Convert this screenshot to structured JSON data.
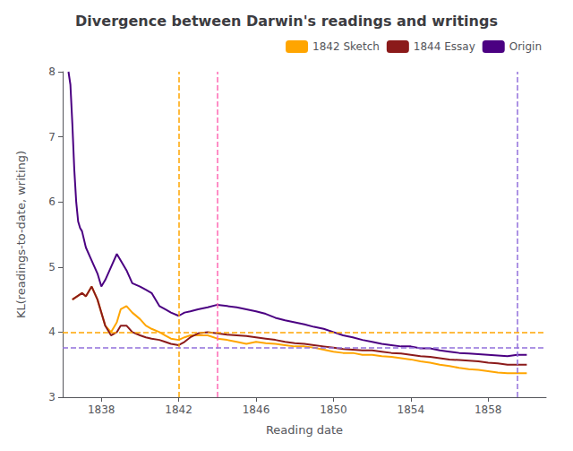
{
  "chart_data": {
    "type": "line",
    "title": "Divergence between Darwin's readings and writings",
    "xlabel": "Reading date",
    "ylabel": "KL(readings-to-date, writing)",
    "xlim": [
      1836.0,
      1861.0
    ],
    "ylim": [
      3.0,
      8.0
    ],
    "xticks": [
      1838,
      1842,
      1846,
      1850,
      1854,
      1858
    ],
    "yticks": [
      3,
      4,
      5,
      6,
      7,
      8
    ],
    "grid": false,
    "legend": "upper right",
    "series": [
      {
        "name": "1842 Sketch",
        "color": "#FFA500",
        "x": [
          1836.5,
          1837.0,
          1837.2,
          1837.5,
          1837.8,
          1838.0,
          1838.2,
          1838.5,
          1838.8,
          1839.0,
          1839.3,
          1839.6,
          1840.0,
          1840.3,
          1840.6,
          1841.0,
          1841.3,
          1841.6,
          1842.0,
          1842.3,
          1842.6,
          1843.0,
          1843.5,
          1844.0,
          1844.5,
          1845.0,
          1845.5,
          1846.0,
          1846.5,
          1847.0,
          1847.5,
          1848.0,
          1848.5,
          1849.0,
          1849.5,
          1850.0,
          1850.5,
          1851.0,
          1851.5,
          1852.0,
          1852.5,
          1853.0,
          1853.5,
          1854.0,
          1854.5,
          1855.0,
          1855.5,
          1856.0,
          1856.5,
          1857.0,
          1857.5,
          1858.0,
          1858.5,
          1859.0,
          1859.5,
          1860.0
        ],
        "values": [
          4.5,
          4.6,
          4.55,
          4.7,
          4.5,
          4.3,
          4.1,
          4.0,
          4.15,
          4.35,
          4.4,
          4.3,
          4.2,
          4.1,
          4.05,
          4.0,
          3.95,
          3.9,
          3.88,
          3.92,
          3.95,
          3.95,
          3.95,
          3.9,
          3.88,
          3.85,
          3.82,
          3.85,
          3.83,
          3.82,
          3.8,
          3.78,
          3.78,
          3.76,
          3.73,
          3.7,
          3.68,
          3.68,
          3.65,
          3.65,
          3.63,
          3.62,
          3.6,
          3.58,
          3.55,
          3.53,
          3.5,
          3.48,
          3.45,
          3.43,
          3.42,
          3.4,
          3.38,
          3.37,
          3.37,
          3.37
        ]
      },
      {
        "name": "1844 Essay",
        "color": "#8B1A1A",
        "x": [
          1836.5,
          1837.0,
          1837.2,
          1837.5,
          1837.8,
          1838.0,
          1838.2,
          1838.5,
          1838.8,
          1839.0,
          1839.3,
          1839.6,
          1840.0,
          1840.3,
          1840.6,
          1841.0,
          1841.3,
          1841.6,
          1842.0,
          1842.3,
          1842.6,
          1843.0,
          1843.5,
          1844.0,
          1844.5,
          1845.0,
          1845.5,
          1846.0,
          1846.5,
          1847.0,
          1847.5,
          1848.0,
          1848.5,
          1849.0,
          1849.5,
          1850.0,
          1850.5,
          1851.0,
          1851.5,
          1852.0,
          1852.5,
          1853.0,
          1853.5,
          1854.0,
          1854.5,
          1855.0,
          1855.5,
          1856.0,
          1856.5,
          1857.0,
          1857.5,
          1858.0,
          1858.5,
          1859.0,
          1859.5,
          1860.0
        ],
        "values": [
          4.5,
          4.6,
          4.55,
          4.7,
          4.5,
          4.3,
          4.1,
          3.95,
          4.0,
          4.1,
          4.1,
          4.0,
          3.95,
          3.92,
          3.9,
          3.88,
          3.85,
          3.82,
          3.8,
          3.85,
          3.92,
          3.98,
          4.0,
          3.98,
          3.96,
          3.95,
          3.94,
          3.92,
          3.9,
          3.88,
          3.85,
          3.83,
          3.82,
          3.8,
          3.78,
          3.76,
          3.74,
          3.73,
          3.72,
          3.72,
          3.7,
          3.68,
          3.67,
          3.65,
          3.63,
          3.62,
          3.6,
          3.58,
          3.57,
          3.56,
          3.55,
          3.53,
          3.52,
          3.5,
          3.5,
          3.5
        ]
      },
      {
        "name": "Origin",
        "color": "#4B0082",
        "x": [
          1836.3,
          1836.4,
          1836.5,
          1836.6,
          1836.7,
          1836.8,
          1836.9,
          1837.0,
          1837.2,
          1837.5,
          1837.8,
          1838.0,
          1838.2,
          1838.5,
          1838.8,
          1839.0,
          1839.3,
          1839.6,
          1840.0,
          1840.3,
          1840.6,
          1841.0,
          1841.3,
          1841.6,
          1842.0,
          1842.3,
          1842.6,
          1843.0,
          1843.5,
          1844.0,
          1844.5,
          1845.0,
          1845.5,
          1846.0,
          1846.5,
          1847.0,
          1847.5,
          1848.0,
          1848.5,
          1849.0,
          1849.5,
          1850.0,
          1850.5,
          1851.0,
          1851.5,
          1852.0,
          1852.5,
          1853.0,
          1853.5,
          1854.0,
          1854.5,
          1855.0,
          1855.5,
          1856.0,
          1856.5,
          1857.0,
          1857.5,
          1858.0,
          1858.5,
          1859.0,
          1859.5,
          1860.0
        ],
        "values": [
          8.0,
          7.8,
          7.2,
          6.5,
          6.0,
          5.7,
          5.6,
          5.55,
          5.3,
          5.1,
          4.9,
          4.7,
          4.8,
          5.0,
          5.2,
          5.1,
          4.95,
          4.75,
          4.7,
          4.65,
          4.6,
          4.4,
          4.35,
          4.3,
          4.25,
          4.3,
          4.32,
          4.35,
          4.38,
          4.42,
          4.4,
          4.38,
          4.35,
          4.32,
          4.28,
          4.22,
          4.18,
          4.15,
          4.12,
          4.08,
          4.05,
          4.0,
          3.95,
          3.92,
          3.88,
          3.85,
          3.82,
          3.8,
          3.78,
          3.78,
          3.75,
          3.75,
          3.72,
          3.7,
          3.68,
          3.67,
          3.66,
          3.65,
          3.64,
          3.63,
          3.65,
          3.65
        ]
      }
    ],
    "vlines": [
      {
        "value": 1842.0,
        "color": "#FFA500",
        "line_style": "dashed"
      },
      {
        "value": 1844.0,
        "color": "#FF69B4",
        "line_style": "dashed"
      },
      {
        "value": 1859.5,
        "color": "#9370DB",
        "line_style": "dashed"
      }
    ],
    "hlines": [
      {
        "value": 4.0,
        "color": "#FFA500",
        "line_style": "dashed"
      },
      {
        "value": 3.76,
        "color": "#9370DB",
        "line_style": "dashed"
      }
    ]
  }
}
